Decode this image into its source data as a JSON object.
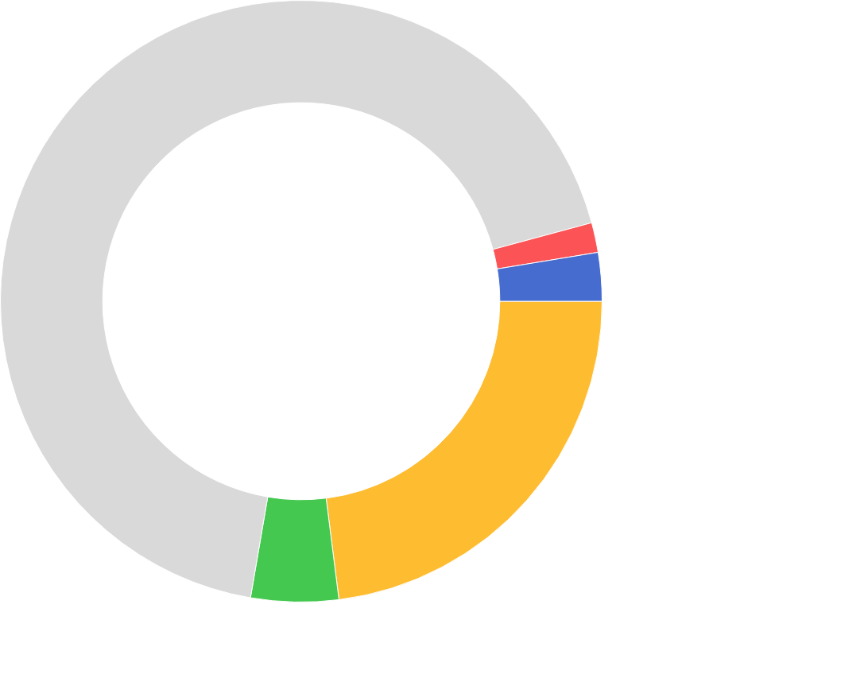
{
  "chart_data": {
    "type": "donut",
    "categories": [
      null,
      null,
      null,
      null,
      null
    ],
    "values": [
      23.0,
      4.7,
      68.1,
      1.6,
      2.6
    ],
    "colors": [
      "#febc31",
      "#44c850",
      "#d9d9d9",
      "#fc5456",
      "#456cce"
    ],
    "legend": false
  }
}
